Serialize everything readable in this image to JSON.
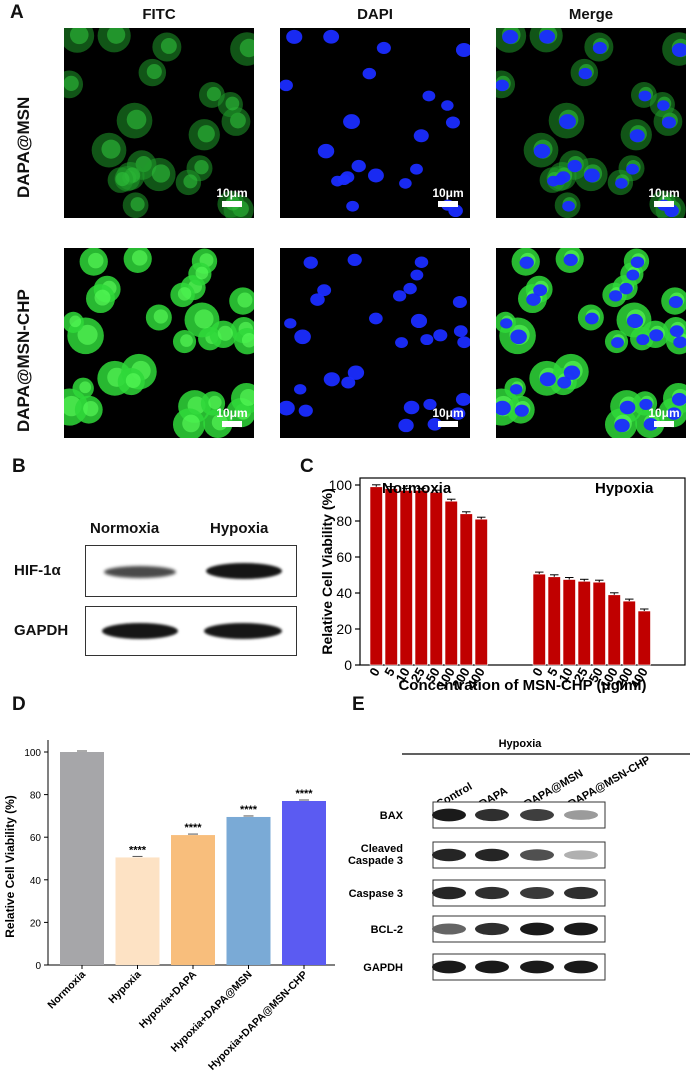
{
  "panelA": {
    "label": "A",
    "columns": [
      "FITC",
      "DAPI",
      "Merge"
    ],
    "rows": [
      "DAPA@MSN",
      "DAPA@MSN-CHP"
    ],
    "scale_bar": "10μm"
  },
  "panelB": {
    "label": "B",
    "conditions": [
      "Normoxia",
      "Hypoxia"
    ],
    "proteins": [
      "HIF-1α",
      "GAPDH"
    ]
  },
  "panelC": {
    "label": "C",
    "chart_data": {
      "type": "bar",
      "xlabel": "Concentration of MSN-CHP (μg/ml)",
      "ylabel": "Relative Cell Viability (%)",
      "ylim": [
        0,
        100
      ],
      "yticks": [
        0,
        20,
        40,
        60,
        80,
        100
      ],
      "categories": [
        "0",
        "5",
        "10",
        "25",
        "50",
        "100",
        "200",
        "400"
      ],
      "groups": [
        {
          "name": "Normoxia",
          "values": [
            99,
            98,
            97,
            97,
            96,
            91,
            84,
            81
          ]
        },
        {
          "name": "Hypoxia",
          "values": [
            50.5,
            49,
            47.5,
            46.5,
            46,
            39,
            35.5,
            30
          ]
        }
      ],
      "bar_color": "#c00000"
    }
  },
  "panelD": {
    "label": "D",
    "chart_data": {
      "type": "bar",
      "ylabel": "Relative Cell Viability (%)",
      "ylim": [
        0,
        100
      ],
      "yticks": [
        0,
        20,
        40,
        60,
        80,
        100
      ],
      "categories": [
        "Normoxia",
        "Hypoxia",
        "Hypoxia+DAPA",
        "Hypoxia+DAPA@MSN",
        "Hypoxia+DAPA@MSN-CHP"
      ],
      "values": [
        100,
        50.5,
        61,
        69.5,
        77
      ],
      "significance": [
        "",
        "****",
        "****",
        "****",
        "****"
      ],
      "colors": [
        "#a6a6a9",
        "#fde2c4",
        "#f8be7c",
        "#7aaad6",
        "#5b5bf2"
      ]
    }
  },
  "panelE": {
    "label": "E",
    "header": "Hypoxia",
    "lanes": [
      "Control",
      "DAPA",
      "DAPA@MSN",
      "DAPA@MSN-CHP"
    ],
    "proteins": [
      "BAX",
      "Cleaved Caspade 3",
      "Caspase 3",
      "BCL-2",
      "GAPDH"
    ],
    "protein_lines": [
      [
        "BAX"
      ],
      [
        "Cleaved",
        "Caspade 3"
      ],
      [
        "Caspase 3"
      ],
      [
        "BCL-2"
      ],
      [
        "GAPDH"
      ]
    ]
  }
}
